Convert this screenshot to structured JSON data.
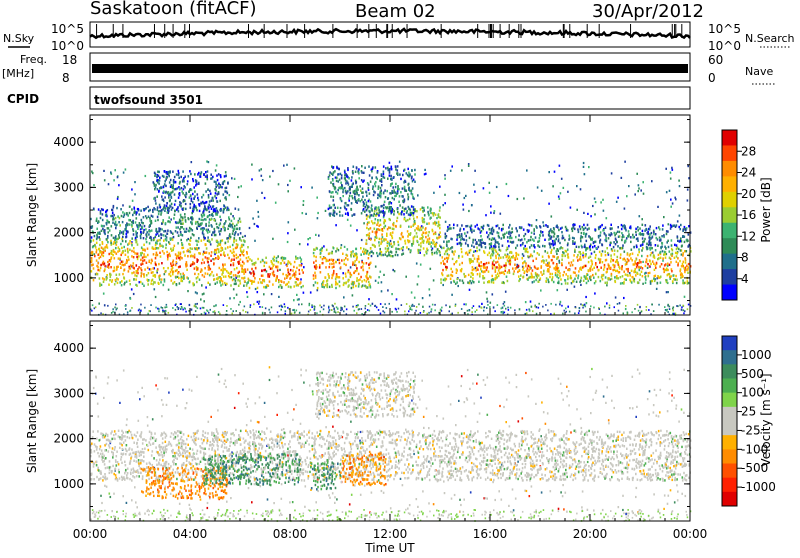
{
  "header": {
    "station": "Saskatoon (fitACF)",
    "beam": "Beam 02",
    "date": "30/Apr/2012"
  },
  "strip_left_labels": {
    "nsky": "N.Sky",
    "freq_top": "Freq.",
    "freq_unit": "[MHz]",
    "cpid": "CPID"
  },
  "strip_right_labels": {
    "nsearch": "N.Search",
    "nave": "Nave"
  },
  "noise_strip": {
    "left_ticks": [
      "10^5",
      "10^0"
    ],
    "right_ticks": [
      "10^5",
      "10^0"
    ]
  },
  "freq_strip": {
    "left_ticks": [
      "18",
      "8"
    ],
    "right_ticks": [
      "60",
      "0"
    ],
    "freq_level_mhz": 11,
    "nave_level": 57
  },
  "cpid_strip": {
    "label": "twofsound 3501"
  },
  "chart_data": [
    {
      "type": "heatmap",
      "name": "power",
      "ylabel": "Slant Range [km]",
      "yticks": [
        "4000",
        "3000",
        "2000",
        "1000"
      ],
      "ytick_values": [
        4000,
        3000,
        2000,
        1000
      ],
      "ylim": [
        180,
        4600
      ],
      "xlim": [
        0,
        24
      ],
      "colorbar": {
        "label": "Power [dB]",
        "ticks": [
          "28",
          "24",
          "20",
          "16",
          "12",
          "8",
          "4"
        ],
        "colors": [
          "#e00000",
          "#ff4500",
          "#ff8c00",
          "#ffb000",
          "#e0d000",
          "#9acd32",
          "#3cb371",
          "#2e8b57",
          "#1f6f8b",
          "#1e3fa0",
          "#0000ff"
        ]
      },
      "bands": [
        {
          "t0": 0.0,
          "t1": 6.3,
          "r0": 850,
          "r1": 1900,
          "level": 0.85
        },
        {
          "t0": 6.3,
          "t1": 8.5,
          "r0": 800,
          "r1": 1500,
          "level": 0.9
        },
        {
          "t0": 8.9,
          "t1": 11.2,
          "r0": 800,
          "r1": 1700,
          "level": 0.85
        },
        {
          "t0": 11.0,
          "t1": 14.0,
          "r0": 1500,
          "r1": 2600,
          "level": 0.7
        },
        {
          "t0": 14.0,
          "t1": 24.0,
          "r0": 900,
          "r1": 1700,
          "level": 0.8
        },
        {
          "t0": 0.0,
          "t1": 6.0,
          "r0": 1900,
          "r1": 2600,
          "level": 0.35
        },
        {
          "t0": 2.5,
          "t1": 5.5,
          "r0": 2500,
          "r1": 3400,
          "level": 0.25
        },
        {
          "t0": 9.5,
          "t1": 13.0,
          "r0": 2400,
          "r1": 3500,
          "level": 0.3
        },
        {
          "t0": 14.0,
          "t1": 24.0,
          "r0": 1700,
          "r1": 2200,
          "level": 0.3
        }
      ]
    },
    {
      "type": "heatmap",
      "name": "velocity",
      "ylabel": "Slant Range [km]",
      "yticks": [
        "4000",
        "3000",
        "2000",
        "1000"
      ],
      "ytick_values": [
        4000,
        3000,
        2000,
        1000
      ],
      "ylim": [
        180,
        4600
      ],
      "xlim": [
        0,
        24
      ],
      "xticks": [
        "00:00",
        "04:00",
        "08:00",
        "12:00",
        "16:00",
        "20:00",
        "00:00"
      ],
      "xtick_values": [
        0,
        4,
        8,
        12,
        16,
        20,
        24
      ],
      "xlabel": "Time UT",
      "colorbar": {
        "label": "Velocity [m s⁻¹]",
        "ticks": [
          "1000",
          "500",
          "100",
          "25",
          "-25",
          "-100",
          "-500",
          "-1000"
        ],
        "colors": [
          "#2040c0",
          "#2f6f8f",
          "#3c8c5c",
          "#4caf50",
          "#7fd44a",
          "#c8c8c0",
          "#c8c8c0",
          "#ffb000",
          "#ff8c00",
          "#ff5000",
          "#ff2000",
          "#e00000"
        ]
      },
      "bands": [
        {
          "t0": 0.0,
          "t1": 24.0,
          "r0": 1100,
          "r1": 2200,
          "kind": "gray"
        },
        {
          "t0": 2.0,
          "t1": 5.5,
          "r0": 700,
          "r1": 1400,
          "kind": "orange"
        },
        {
          "t0": 4.5,
          "t1": 8.4,
          "r0": 1000,
          "r1": 1700,
          "kind": "green"
        },
        {
          "t0": 8.8,
          "t1": 10.0,
          "r0": 900,
          "r1": 1500,
          "kind": "green"
        },
        {
          "t0": 10.0,
          "t1": 11.8,
          "r0": 1000,
          "r1": 1700,
          "kind": "orange"
        },
        {
          "t0": 9.0,
          "t1": 13.0,
          "r0": 2500,
          "r1": 3500,
          "kind": "gray"
        }
      ]
    }
  ]
}
